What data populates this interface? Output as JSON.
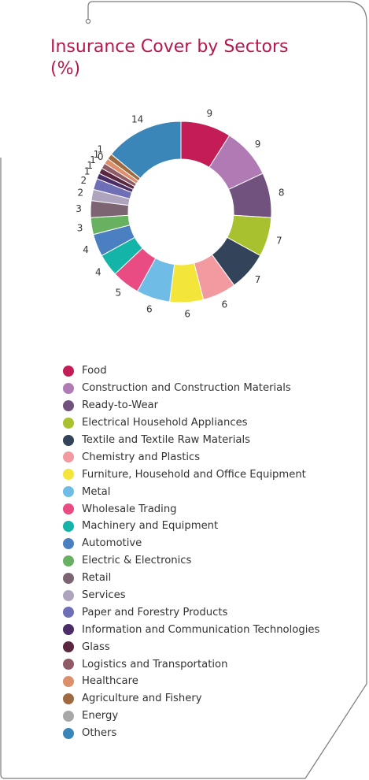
{
  "title_line1": "Insurance Cover by Sectors",
  "title_line2": "(%)",
  "chart_data": {
    "type": "pie",
    "donut": true,
    "title": "Insurance Cover by Sectors (%)",
    "legend_position": "bottom",
    "slices": [
      {
        "name": "Food",
        "value": 9,
        "color": "#c31c56"
      },
      {
        "name": "Construction and Construction Materials",
        "value": 9,
        "color": "#b07ab5"
      },
      {
        "name": "Ready-to-Wear",
        "value": 8,
        "color": "#71517e"
      },
      {
        "name": "Electrical Household Appliances",
        "value": 7,
        "color": "#a8c12f"
      },
      {
        "name": "Textile and Textile Raw Materials",
        "value": 7,
        "color": "#33445a"
      },
      {
        "name": "Chemistry and Plastics",
        "value": 6,
        "color": "#f29aa0"
      },
      {
        "name": "Furniture, Household and Office Equipment",
        "value": 6,
        "color": "#f4e53a"
      },
      {
        "name": "Metal",
        "value": 6,
        "color": "#6fbde6"
      },
      {
        "name": "Wholesale Trading",
        "value": 5,
        "color": "#e84c82"
      },
      {
        "name": "Machinery and Equipment",
        "value": 4,
        "color": "#14b5a8"
      },
      {
        "name": "Automotive",
        "value": 4,
        "color": "#4a7fc1"
      },
      {
        "name": "Electric & Electronics",
        "value": 3,
        "color": "#67b160"
      },
      {
        "name": "Retail",
        "value": 3,
        "color": "#7d6473"
      },
      {
        "name": "Services",
        "value": 2,
        "color": "#aea4bd"
      },
      {
        "name": "Paper and Forestry Products",
        "value": 2,
        "color": "#6e6fb6"
      },
      {
        "name": "Information and Communication Technologies",
        "value": 1,
        "color": "#4b2e67"
      },
      {
        "name": "Glass",
        "value": 1,
        "color": "#5a2640"
      },
      {
        "name": "Logistics and Transportation",
        "value": 1,
        "color": "#8f5b66"
      },
      {
        "name": "Healthcare",
        "value": 1,
        "color": "#dc8f6a"
      },
      {
        "name": "Agriculture and Fishery",
        "value": 1,
        "color": "#a06a41"
      },
      {
        "name": "Energy",
        "value": 0,
        "color": "#a8a8a8"
      },
      {
        "name": "Others",
        "value": 14,
        "color": "#3b86b8"
      }
    ]
  }
}
